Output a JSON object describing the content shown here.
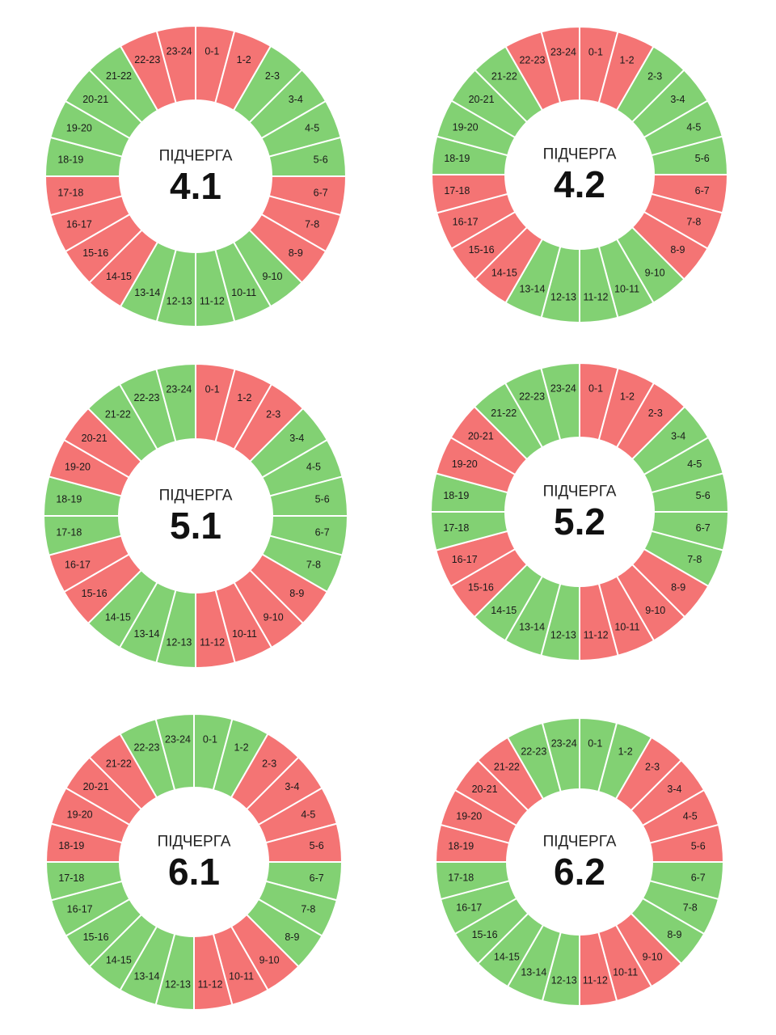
{
  "colors": {
    "on": "#82d173",
    "off": "#f47474",
    "divider": "#ffffff",
    "text": "#1a1a1a",
    "center": "#ffffff"
  },
  "hour_labels": [
    "0-1",
    "1-2",
    "2-3",
    "3-4",
    "4-5",
    "5-6",
    "6-7",
    "7-8",
    "8-9",
    "9-10",
    "10-11",
    "11-12",
    "12-13",
    "13-14",
    "14-15",
    "15-16",
    "16-17",
    "17-18",
    "18-19",
    "19-20",
    "20-21",
    "21-22",
    "22-23",
    "23-24"
  ],
  "wheels": [
    {
      "caption": "ПІДЧЕРГА",
      "number": "4.1",
      "states": [
        "off",
        "off",
        "on",
        "on",
        "on",
        "on",
        "off",
        "off",
        "off",
        "on",
        "on",
        "on",
        "on",
        "on",
        "off",
        "off",
        "off",
        "off",
        "on",
        "on",
        "on",
        "on",
        "off",
        "off"
      ]
    },
    {
      "caption": "ПІДЧЕРГА",
      "number": "4.2",
      "states": [
        "off",
        "off",
        "on",
        "on",
        "on",
        "on",
        "off",
        "off",
        "off",
        "on",
        "on",
        "on",
        "on",
        "on",
        "off",
        "off",
        "off",
        "off",
        "on",
        "on",
        "on",
        "on",
        "off",
        "off"
      ]
    },
    {
      "caption": "ПІДЧЕРГА",
      "number": "5.1",
      "states": [
        "off",
        "off",
        "off",
        "on",
        "on",
        "on",
        "on",
        "on",
        "off",
        "off",
        "off",
        "off",
        "on",
        "on",
        "on",
        "off",
        "off",
        "on",
        "on",
        "off",
        "off",
        "on",
        "on",
        "on"
      ]
    },
    {
      "caption": "ПІДЧЕРГА",
      "number": "5.2",
      "states": [
        "off",
        "off",
        "off",
        "on",
        "on",
        "on",
        "on",
        "on",
        "off",
        "off",
        "off",
        "off",
        "on",
        "on",
        "on",
        "off",
        "off",
        "on",
        "on",
        "off",
        "off",
        "on",
        "on",
        "on"
      ]
    },
    {
      "caption": "ПІДЧЕРГА",
      "number": "6.1",
      "states": [
        "on",
        "on",
        "off",
        "off",
        "off",
        "off",
        "on",
        "on",
        "on",
        "off",
        "off",
        "off",
        "on",
        "on",
        "on",
        "on",
        "on",
        "on",
        "off",
        "off",
        "off",
        "off",
        "on",
        "on"
      ]
    },
    {
      "caption": "ПІДЧЕРГА",
      "number": "6.2",
      "states": [
        "on",
        "on",
        "off",
        "off",
        "off",
        "off",
        "on",
        "on",
        "on",
        "off",
        "off",
        "off",
        "on",
        "on",
        "on",
        "on",
        "on",
        "on",
        "off",
        "off",
        "off",
        "off",
        "on",
        "on"
      ]
    }
  ]
}
